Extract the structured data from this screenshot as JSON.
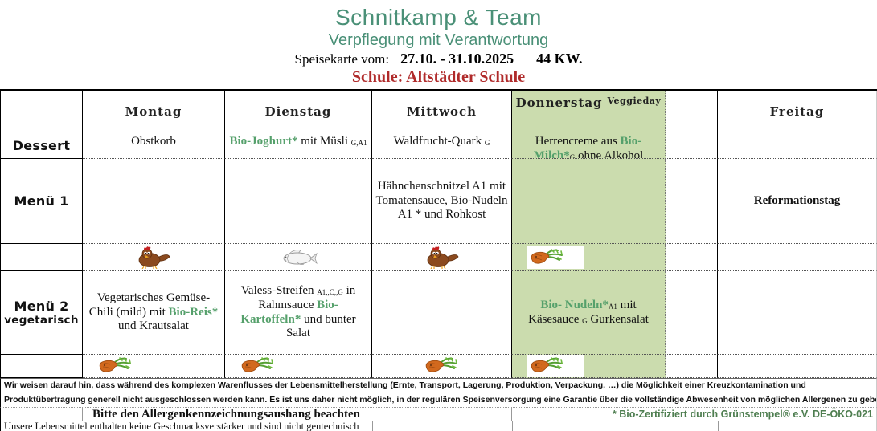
{
  "header": {
    "title": "Schnitkamp & Team",
    "subtitle": "Verpflegung mit Verantwortung",
    "menu_label": "Speisekarte vom:",
    "date_range": "27.10. - 31.10.2025",
    "week": "44 KW.",
    "school": "Schule: Altstädter Schule"
  },
  "colors": {
    "brand_green": "#4a9077",
    "bio_green": "#55a06b",
    "cert_green": "#4e7e50",
    "school_red": "#b02b2b",
    "veggieday_background": "#cbdcae"
  },
  "table": {
    "days": [
      {
        "label": "Montag"
      },
      {
        "label": "Dienstag"
      },
      {
        "label": "Mittwoch"
      },
      {
        "label": "Donnerstag",
        "suffix": "Veggieday"
      },
      {
        "label": ""
      },
      {
        "label": "Freitag"
      }
    ],
    "row_labels": {
      "dessert": "Dessert",
      "menu1": "Menü 1",
      "menu2": "Menü 2",
      "menu2_sub": "vegetarisch"
    },
    "cells": {
      "dessert": {
        "montag": [
          {
            "t": "Obstkorb"
          }
        ],
        "dienstag": [
          {
            "t": "Bio-Joghurt*",
            "s": "bio"
          },
          {
            "t": " mit Müsli "
          },
          {
            "t": "G,A1",
            "s": "sub"
          }
        ],
        "mittwoch": [
          {
            "t": "Waldfrucht-Quark "
          },
          {
            "t": "G",
            "s": "sub"
          }
        ],
        "donnerstag": [
          {
            "t": "Herrencreme aus "
          },
          {
            "t": "Bio-Milch*",
            "s": "bio"
          },
          {
            "t": "G",
            "s": "sub"
          },
          {
            "t": " ohne Alkohol"
          }
        ]
      },
      "menu1": {
        "mittwoch": [
          {
            "t": "Hähnchenschnitzel A1 mit Tomatensauce, Bio-Nudeln A1 * und Rohkost"
          }
        ],
        "freitag": [
          {
            "t": "Reformationstag",
            "s": "bold"
          }
        ]
      },
      "icons_row1": {
        "montag": "chicken",
        "dienstag": "fish",
        "mittwoch": "chicken",
        "donnerstag": "carrot"
      },
      "menu2": {
        "montag": [
          {
            "t": "Vegetarisches Gemüse-Chili (mild) mit "
          },
          {
            "t": "Bio-Reis*",
            "s": "bio"
          },
          {
            "t": " und Krautsalat"
          }
        ],
        "dienstag": [
          {
            "t": "Valess-Streifen "
          },
          {
            "t": "A1,,C,,G",
            "s": "sub"
          },
          {
            "t": " in Rahmsauce "
          },
          {
            "t": "Bio-Kartoffeln*",
            "s": "bio"
          },
          {
            "t": " und bunter Salat"
          }
        ],
        "donnerstag": [
          {
            "t": "Bio- Nudeln*",
            "s": "bio"
          },
          {
            "t": "A1",
            "s": "sub"
          },
          {
            "t": " mit Käsesauce "
          },
          {
            "t": "G",
            "s": "sub"
          },
          {
            "t": "  Gurkensalat"
          }
        ]
      },
      "icons_row2": {
        "montag": "carrot",
        "dienstag": "carrot",
        "mittwoch": "carrot",
        "donnerstag": "carrot"
      }
    }
  },
  "footer": {
    "disclaimer_line1": "Wir weisen darauf hin, dass während des komplexen Warenflusses der Lebensmittelherstellung (Ernte, Transport, Lagerung, Produktion, Verpackung, …) die Möglichkeit einer Kreuzkontamination und",
    "disclaimer_line2": "Produktübertragung generell nicht ausgeschlossen werden kann. Es ist uns daher nicht möglich, in der regulären Speisenversorgung eine Garantie über die vollständige Abwesenheit von möglichen Allergenen zu geben.",
    "allergy_notice": "Bitte den  Allergenkennzeichnungsaushang beachten",
    "bio_certificate": "* Bio-Zertifiziert durch Grünstempel® e.V. DE-ÖKO-021",
    "quality_note": "Unsere Lebensmittel enthalten keine Geschmacksverstärker und sind nicht gentechnisch verändert."
  }
}
